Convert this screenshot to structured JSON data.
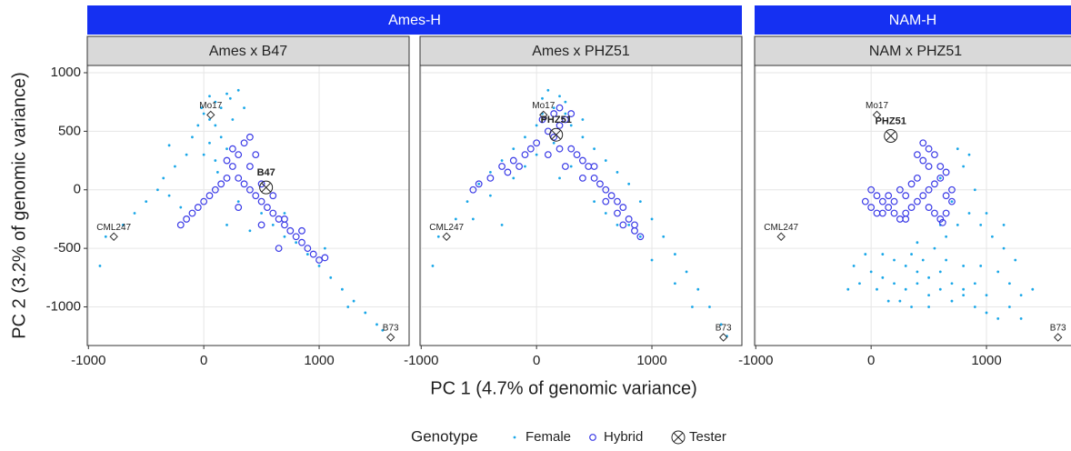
{
  "facet_groups": [
    {
      "label": "Ames-H"
    },
    {
      "label": "NAM-H"
    }
  ],
  "x_label": "PC 1 (4.7% of genomic variance)",
  "y_label": "PC 2 (3.2% of genomic variance)",
  "legend_title": "Genotype",
  "chart_data": [
    {
      "type": "scatter",
      "facet": "Ames x B47",
      "grid": true,
      "xlim": [
        -1010,
        1780
      ],
      "ylim": [
        -1330,
        1062
      ],
      "xticks": [
        -1000,
        0,
        1000
      ],
      "yticks": [
        -1000,
        -500,
        0,
        500,
        1000
      ],
      "series": [
        {
          "name": "Female",
          "color": "#1aa7e8",
          "x": [
            50,
            100,
            150,
            200,
            300,
            250,
            0,
            -50,
            100,
            150,
            -100,
            50,
            200,
            0,
            100,
            -150,
            -250,
            -350,
            -400,
            -500,
            -600,
            -700,
            -850,
            -900,
            -300,
            -200,
            300,
            500,
            600,
            700,
            800,
            900,
            1000,
            1100,
            1200,
            1300,
            1400,
            1500,
            1550,
            200,
            400,
            50,
            -20,
            230,
            350,
            120,
            -300,
            700,
            1050,
            1250
          ],
          "y": [
            800,
            750,
            700,
            820,
            850,
            600,
            650,
            550,
            550,
            450,
            450,
            400,
            350,
            300,
            250,
            300,
            200,
            100,
            0,
            -100,
            -200,
            -300,
            -400,
            -650,
            -50,
            -150,
            -100,
            -200,
            -300,
            -400,
            -450,
            -550,
            -650,
            -750,
            -850,
            -950,
            -1050,
            -1150,
            -1200,
            -300,
            -350,
            600,
            700,
            780,
            700,
            150,
            380,
            -200,
            -500,
            -1000
          ]
        },
        {
          "name": "Hybrid",
          "color": "#3a3ae6",
          "x": [
            250,
            300,
            350,
            400,
            300,
            350,
            400,
            450,
            500,
            550,
            600,
            650,
            700,
            750,
            800,
            850,
            900,
            950,
            1000,
            1050,
            200,
            150,
            100,
            50,
            0,
            -50,
            -100,
            -150,
            -200,
            250,
            450,
            200,
            400,
            500,
            600,
            700,
            300,
            500,
            650,
            850
          ],
          "y": [
            200,
            300,
            400,
            450,
            100,
            50,
            0,
            -50,
            -100,
            -150,
            -200,
            -250,
            -300,
            -350,
            -400,
            -450,
            -500,
            -550,
            -600,
            -580,
            100,
            50,
            0,
            -50,
            -100,
            -150,
            -200,
            -250,
            -300,
            350,
            300,
            250,
            200,
            50,
            -50,
            -250,
            -150,
            -300,
            -500,
            -350
          ]
        },
        {
          "name": "Tester",
          "color": "#222222",
          "x": [
            540
          ],
          "y": [
            20
          ],
          "labels": [
            "B47"
          ]
        }
      ],
      "annotations": [
        {
          "text": "Mo17",
          "x": 60,
          "y": 640
        },
        {
          "text": "CML247",
          "x": -780,
          "y": -400
        },
        {
          "text": "B73",
          "x": 1620,
          "y": -1260
        }
      ]
    },
    {
      "type": "scatter",
      "facet": "Ames x PHZ51",
      "grid": true,
      "xlim": [
        -1010,
        1780
      ],
      "ylim": [
        -1330,
        1062
      ],
      "xticks": [
        -1000,
        0,
        1000
      ],
      "yticks": [
        -1000,
        -500,
        0,
        500,
        1000
      ],
      "series": [
        {
          "name": "Female",
          "color": "#1aa7e8",
          "x": [
            100,
            200,
            150,
            50,
            250,
            0,
            300,
            -100,
            400,
            -200,
            500,
            -300,
            600,
            -400,
            700,
            -500,
            800,
            -600,
            900,
            -700,
            1000,
            -850,
            1100,
            -900,
            1200,
            1300,
            1400,
            1500,
            1600,
            1650,
            -400,
            -200,
            500,
            700,
            300,
            0,
            150,
            -300,
            1000,
            1200,
            900,
            -550,
            600,
            200,
            -100,
            400,
            250,
            50,
            1350,
            800
          ],
          "y": [
            850,
            800,
            700,
            650,
            650,
            550,
            550,
            450,
            450,
            350,
            350,
            250,
            250,
            150,
            150,
            50,
            50,
            -100,
            -100,
            -250,
            -250,
            -400,
            -400,
            -650,
            -550,
            -700,
            -850,
            -1000,
            -1150,
            -1250,
            -50,
            100,
            -100,
            -300,
            200,
            300,
            400,
            -300,
            -600,
            -800,
            -400,
            -250,
            -200,
            100,
            200,
            600,
            750,
            780,
            -1000,
            -300
          ]
        },
        {
          "name": "Hybrid",
          "color": "#3a3ae6",
          "x": [
            100,
            200,
            150,
            250,
            50,
            300,
            0,
            -50,
            -100,
            -200,
            -300,
            -400,
            -500,
            -550,
            300,
            350,
            400,
            450,
            500,
            550,
            600,
            650,
            700,
            750,
            800,
            850,
            900,
            200,
            100,
            -150,
            250,
            400,
            600,
            700,
            150,
            200,
            -250,
            500,
            750,
            850
          ],
          "y": [
            500,
            550,
            450,
            600,
            600,
            650,
            400,
            350,
            300,
            250,
            200,
            100,
            50,
            0,
            350,
            300,
            250,
            200,
            100,
            50,
            0,
            -50,
            -100,
            -150,
            -250,
            -300,
            -400,
            350,
            300,
            200,
            200,
            100,
            -100,
            -200,
            650,
            700,
            150,
            200,
            -300,
            -350
          ]
        },
        {
          "name": "Tester",
          "color": "#222222",
          "x": [
            170
          ],
          "y": [
            470
          ],
          "labels": [
            "PHZ51"
          ]
        }
      ],
      "annotations": [
        {
          "text": "Mo17",
          "x": 60,
          "y": 640
        },
        {
          "text": "CML247",
          "x": -780,
          "y": -400
        },
        {
          "text": "B73",
          "x": 1620,
          "y": -1260
        }
      ]
    },
    {
      "type": "scatter",
      "facet": "NAM x PHZ51",
      "grid": true,
      "xlim": [
        -1010,
        1780
      ],
      "ylim": [
        -1330,
        1062
      ],
      "xticks": [
        -1000,
        0,
        1000
      ],
      "yticks": [
        -1000,
        -500,
        0,
        500,
        1000
      ],
      "series": [
        {
          "name": "Female",
          "color": "#1aa7e8",
          "x": [
            -150,
            0,
            100,
            200,
            300,
            400,
            500,
            600,
            700,
            800,
            900,
            1000,
            1100,
            1200,
            1300,
            1400,
            100,
            200,
            300,
            400,
            500,
            600,
            700,
            800,
            900,
            250,
            350,
            -100,
            50,
            450,
            550,
            650,
            750,
            850,
            950,
            1050,
            1150,
            1250,
            1000,
            900,
            800,
            850,
            700,
            600,
            1100,
            1200,
            950,
            150,
            -50,
            1300,
            600,
            750,
            650,
            400,
            1000,
            -200,
            350,
            500,
            800,
            1150
          ],
          "y": [
            -650,
            -700,
            -750,
            -800,
            -850,
            -800,
            -900,
            -850,
            -950,
            -900,
            -1000,
            -1050,
            -1100,
            -1000,
            -900,
            -850,
            -550,
            -600,
            -650,
            -700,
            -750,
            -700,
            -800,
            -850,
            -800,
            -950,
            -1000,
            -800,
            -850,
            -600,
            -500,
            -400,
            -300,
            -200,
            -300,
            -400,
            -500,
            -600,
            -200,
            0,
            200,
            300,
            -100,
            -300,
            -700,
            -800,
            -650,
            -950,
            -550,
            -1100,
            100,
            350,
            -600,
            -450,
            -900,
            -850,
            -550,
            -1000,
            -650,
            -300
          ]
        },
        {
          "name": "Hybrid",
          "color": "#3a3ae6",
          "x": [
            0,
            50,
            100,
            150,
            200,
            250,
            300,
            350,
            400,
            450,
            500,
            550,
            600,
            650,
            500,
            450,
            400,
            450,
            500,
            550,
            600,
            650,
            700,
            650,
            600,
            550,
            500,
            0,
            -50,
            100,
            200,
            300,
            250,
            350,
            400,
            150,
            50,
            300,
            700,
            620
          ],
          "y": [
            0,
            -50,
            -100,
            -150,
            -200,
            -250,
            -200,
            -150,
            -100,
            -50,
            0,
            50,
            100,
            150,
            200,
            250,
            300,
            400,
            350,
            300,
            200,
            -50,
            -100,
            -200,
            -250,
            -200,
            -150,
            -150,
            -100,
            -200,
            -100,
            -50,
            0,
            50,
            100,
            -50,
            -200,
            -250,
            0,
            -280
          ]
        },
        {
          "name": "Tester",
          "color": "#222222",
          "x": [
            170
          ],
          "y": [
            460
          ],
          "labels": [
            "PHZ51"
          ]
        }
      ],
      "annotations": [
        {
          "text": "Mo17",
          "x": 50,
          "y": 640
        },
        {
          "text": "CML247",
          "x": -780,
          "y": -400
        },
        {
          "text": "B73",
          "x": 1620,
          "y": -1260
        }
      ]
    }
  ]
}
